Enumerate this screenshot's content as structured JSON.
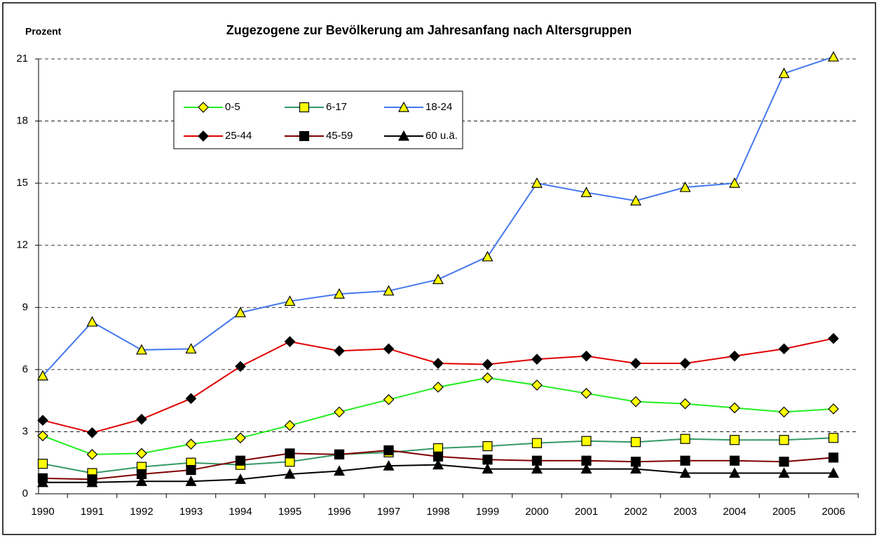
{
  "chart_data": {
    "type": "line",
    "title": "Zugezogene zur Bevölkerung am Jahresanfang nach Altersgruppen",
    "y_label": "Prozent",
    "categories": [
      "1990",
      "1991",
      "1992",
      "1993",
      "1994",
      "1995",
      "1996",
      "1997",
      "1998",
      "1999",
      "2000",
      "2001",
      "2002",
      "2003",
      "2004",
      "2005",
      "2006"
    ],
    "series": [
      {
        "name": "0-5",
        "color": "#22ee22",
        "marker": "diamond",
        "marker_color": "#ffff00",
        "values": [
          2.8,
          1.9,
          1.95,
          2.4,
          2.7,
          3.3,
          3.95,
          4.55,
          5.15,
          5.6,
          5.25,
          4.85,
          4.45,
          4.35,
          4.15,
          3.95,
          4.1
        ]
      },
      {
        "name": "6-17",
        "color": "#339966",
        "marker": "square",
        "marker_color": "#ffff00",
        "values": [
          1.45,
          1.0,
          1.3,
          1.5,
          1.4,
          1.55,
          1.9,
          2.0,
          2.2,
          2.3,
          2.45,
          2.55,
          2.5,
          2.65,
          2.6,
          2.6,
          2.7
        ]
      },
      {
        "name": "18-24",
        "color": "#4477ee",
        "marker": "triangle",
        "marker_color": "#ffff00",
        "values": [
          5.7,
          8.3,
          6.95,
          7.0,
          8.75,
          9.3,
          9.65,
          9.8,
          10.35,
          11.45,
          15.0,
          14.55,
          14.15,
          14.8,
          15.0,
          20.3,
          21.1
        ]
      },
      {
        "name": "25-44",
        "color": "#e00000",
        "marker": "diamond",
        "marker_color": "#000000",
        "values": [
          3.55,
          2.95,
          3.6,
          4.6,
          6.15,
          7.35,
          6.9,
          7.0,
          6.3,
          6.25,
          6.5,
          6.65,
          6.3,
          6.3,
          6.65,
          7.0,
          7.5
        ]
      },
      {
        "name": "45-59",
        "color": "#800000",
        "marker": "square",
        "marker_color": "#000000",
        "values": [
          0.75,
          0.7,
          0.95,
          1.15,
          1.6,
          1.95,
          1.9,
          2.1,
          1.8,
          1.65,
          1.6,
          1.6,
          1.55,
          1.6,
          1.6,
          1.55,
          1.75
        ]
      },
      {
        "name": "60 u.ä.",
        "color": "#000000",
        "marker": "triangle",
        "marker_color": "#000000",
        "values": [
          0.55,
          0.55,
          0.6,
          0.6,
          0.7,
          0.95,
          1.1,
          1.35,
          1.4,
          1.2,
          1.2,
          1.2,
          1.2,
          1.0,
          1.0,
          1.0,
          1.0
        ]
      }
    ],
    "ylim": [
      0,
      21
    ],
    "yticks": [
      0,
      3,
      6,
      9,
      12,
      15,
      18,
      21
    ],
    "grid": true
  }
}
